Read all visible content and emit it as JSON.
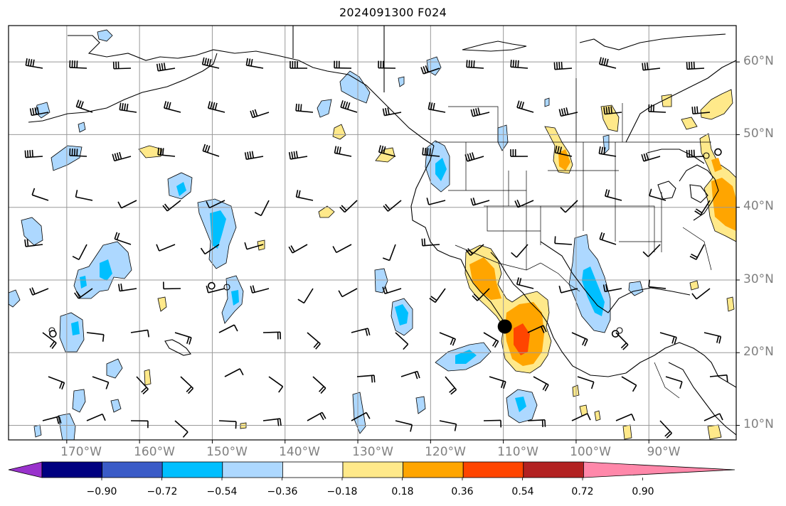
{
  "title": "2024091300 F024",
  "lat_labels": [
    "60°N",
    "50°N",
    "40°N",
    "30°N",
    "20°N",
    "10°N"
  ],
  "lon_labels": [
    "170°W",
    "160°W",
    "150°W",
    "140°W",
    "130°W",
    "120°W",
    "110°W",
    "100°W",
    "90°W"
  ],
  "colorbar": {
    "tick_labels": [
      "−0.90",
      "−0.72",
      "−0.54",
      "−0.36",
      "−0.18",
      "0.18",
      "0.36",
      "0.54",
      "0.72",
      "0.90"
    ],
    "colors": [
      "#9932CC",
      "#000080",
      "#3A5BC7",
      "#00BFFF",
      "#ADD8FF",
      "#FFFFFF",
      "#FFE98A",
      "#FFA500",
      "#FF4500",
      "#B22222",
      "#FF88AA"
    ]
  },
  "colors": {
    "light_blue": "#ADD8FF",
    "cyan": "#00BFFF",
    "yellow": "#FFE98A",
    "orange": "#FFA500",
    "red_orange": "#FF4500",
    "grid": "#999999",
    "coast": "#000000"
  },
  "map": {
    "projection": "equirectangular",
    "lon_range": [
      -178,
      -78
    ],
    "lat_range": [
      8,
      65
    ],
    "grid_lons": [
      -170,
      -160,
      -150,
      -140,
      -130,
      -120,
      -110,
      -100,
      -90
    ],
    "grid_lats": [
      10,
      20,
      30,
      40,
      50,
      60
    ],
    "storm_center": {
      "lon": -109.8,
      "lat": 23.6
    },
    "markers": [
      {
        "lon": -150.1,
        "lat": 29.2
      },
      {
        "lon": -171.9,
        "lat": 22.6
      },
      {
        "lon": -94.6,
        "lat": 22.6
      },
      {
        "lon": -80.5,
        "lat": 47.6
      }
    ]
  }
}
